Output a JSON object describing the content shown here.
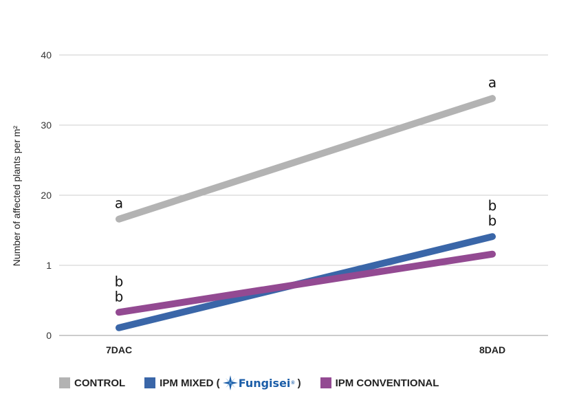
{
  "chart_data": {
    "type": "line",
    "title": "",
    "xlabel": "",
    "ylabel": "Number of affected plants per m²",
    "categories": [
      "7DAC",
      "8DAD"
    ],
    "y_tick_labels": [
      "0",
      "1",
      "20",
      "30",
      "40"
    ],
    "grid": true,
    "legend_position": "bottom",
    "series": [
      {
        "name": "CONTROL",
        "color": "#b3b3b3",
        "values": [
          16.6,
          33.8
        ],
        "significance": [
          "a",
          "a"
        ]
      },
      {
        "name": "IPM MIXED",
        "color": "#3a66a8",
        "values": [
          1.1,
          14.1
        ],
        "significance": [
          "b",
          "b"
        ]
      },
      {
        "name": "IPM CONVENTIONAL",
        "color": "#934a92",
        "values": [
          3.3,
          11.6
        ],
        "significance": [
          "b",
          "b"
        ]
      }
    ]
  },
  "legend": {
    "mixed_prefix": "IPM MIXED (",
    "mixed_suffix": ")",
    "brand_name": "Fungisei",
    "brand_mark": "®"
  }
}
